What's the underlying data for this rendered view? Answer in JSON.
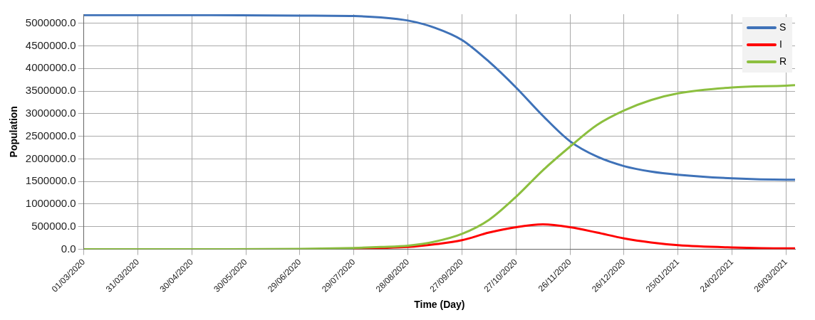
{
  "chart_data": {
    "type": "line",
    "xlabel": "Time (Day)",
    "ylabel": "Population",
    "x": [
      "2020-03-01",
      "2020-04-30",
      "2020-06-29",
      "2020-07-29",
      "2020-08-13",
      "2020-08-28",
      "2020-09-12",
      "2020-09-27",
      "2020-10-12",
      "2020-10-27",
      "2020-11-11",
      "2020-11-26",
      "2020-12-11",
      "2020-12-26",
      "2021-01-10",
      "2021-01-25",
      "2021-02-24",
      "2021-03-26",
      "2021-03-31"
    ],
    "series": [
      {
        "name": "S",
        "color": "#3f72b8",
        "values": [
          5180000,
          5180000,
          5170000,
          5160000,
          5130000,
          5060000,
          4900000,
          4630000,
          4150000,
          3580000,
          2950000,
          2390000,
          2050000,
          1840000,
          1720000,
          1650000,
          1570000,
          1540000,
          1540000
        ]
      },
      {
        "name": "I",
        "color": "#ff0000",
        "values": [
          null,
          null,
          null,
          20000,
          30000,
          50000,
          110000,
          200000,
          370000,
          490000,
          550000,
          490000,
          370000,
          240000,
          150000,
          90000,
          40000,
          20000,
          20000
        ]
      },
      {
        "name": "R",
        "color": "#8cbf3f",
        "values": [
          0,
          0,
          10000,
          30000,
          50000,
          80000,
          170000,
          340000,
          650000,
          1160000,
          1750000,
          2270000,
          2750000,
          3070000,
          3300000,
          3450000,
          3580000,
          3620000,
          3630000
        ]
      }
    ],
    "xlim": [
      "2020-03-01",
      "2021-03-31"
    ],
    "xticks": [
      {
        "value": "2020-03-01",
        "label": "01/03/2020"
      },
      {
        "value": "2020-03-31",
        "label": "31/03/2020"
      },
      {
        "value": "2020-04-30",
        "label": "30/04/2020"
      },
      {
        "value": "2020-05-30",
        "label": "30/05/2020"
      },
      {
        "value": "2020-06-29",
        "label": "29/06/2020"
      },
      {
        "value": "2020-07-29",
        "label": "29/07/2020"
      },
      {
        "value": "2020-08-28",
        "label": "28/08/2020"
      },
      {
        "value": "2020-09-27",
        "label": "27/09/2020"
      },
      {
        "value": "2020-10-27",
        "label": "27/10/2020"
      },
      {
        "value": "2020-11-26",
        "label": "26/11/2020"
      },
      {
        "value": "2020-12-26",
        "label": "26/12/2020"
      },
      {
        "value": "2021-01-25",
        "label": "25/01/2021"
      },
      {
        "value": "2021-02-24",
        "label": "24/02/2021"
      },
      {
        "value": "2021-03-26",
        "label": "26/03/2021"
      }
    ],
    "ylim": [
      0,
      5200000
    ],
    "yticks": [
      {
        "value": 0,
        "label": "0.0"
      },
      {
        "value": 500000,
        "label": "500000.0"
      },
      {
        "value": 1000000,
        "label": "1000000.0"
      },
      {
        "value": 1500000,
        "label": "1500000.0"
      },
      {
        "value": 2000000,
        "label": "2000000.0"
      },
      {
        "value": 2500000,
        "label": "2500000.0"
      },
      {
        "value": 3000000,
        "label": "3000000.0"
      },
      {
        "value": 3500000,
        "label": "3500000.0"
      },
      {
        "value": 4000000,
        "label": "4000000.0"
      },
      {
        "value": 4500000,
        "label": "4500000.0"
      },
      {
        "value": 5000000,
        "label": "5000000.0"
      }
    ],
    "grid": true,
    "legend": "top right"
  }
}
